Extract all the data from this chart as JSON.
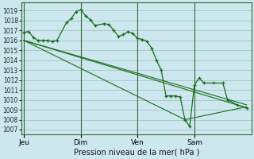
{
  "title": "Pression niveau de la mer( hPa )",
  "background_color": "#cce8ee",
  "grid_color": "#99bbbb",
  "line_color": "#1a6b1a",
  "ylim": [
    1006.5,
    1019.8
  ],
  "yticks": [
    1007,
    1008,
    1009,
    1010,
    1011,
    1012,
    1013,
    1014,
    1015,
    1016,
    1017,
    1018,
    1019
  ],
  "xtick_labels": [
    "Jeu",
    "Dim",
    "Ven",
    "Sam"
  ],
  "xtick_positions": [
    0,
    24,
    48,
    72
  ],
  "xlim": [
    -1,
    96
  ],
  "vlines": [
    0,
    24,
    48,
    72
  ],
  "series_main": [
    0,
    1016.8,
    2,
    1016.9,
    4,
    1016.3,
    6,
    1016.0,
    8,
    1016.0,
    10,
    1016.0,
    12,
    1015.9,
    14,
    1016.0,
    18,
    1017.8,
    20,
    1018.2,
    22,
    1018.9,
    24,
    1019.1,
    26,
    1018.5,
    28,
    1018.1,
    30,
    1017.5,
    34,
    1017.7,
    36,
    1017.6,
    38,
    1017.0,
    40,
    1016.4,
    42,
    1016.6,
    44,
    1016.9,
    46,
    1016.7,
    48,
    1016.2,
    50,
    1016.1,
    52,
    1015.9,
    54,
    1015.2,
    56,
    1014.0,
    58,
    1013.0,
    60,
    1010.4,
    62,
    1010.4,
    64,
    1010.4,
    66,
    1010.3,
    68,
    1008.0,
    70,
    1007.3,
    72,
    1011.5,
    74,
    1012.2,
    76,
    1011.7,
    80,
    1011.7,
    84,
    1011.7,
    86,
    1010.0,
    90,
    1009.5,
    94,
    1009.2
  ],
  "series_straight": [
    [
      [
        0,
        1016.0
      ],
      [
        94,
        1009.2
      ]
    ],
    [
      [
        0,
        1016.0
      ],
      [
        94,
        1009.5
      ]
    ],
    [
      [
        0,
        1016.0
      ],
      [
        68,
        1008.0
      ],
      [
        94,
        1009.3
      ]
    ]
  ]
}
